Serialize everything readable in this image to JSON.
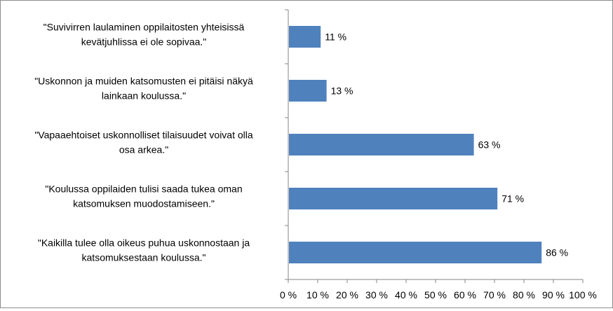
{
  "chart_data": {
    "type": "bar",
    "orientation": "horizontal",
    "categories": [
      [
        "\"Suvivirren laulaminen oppilaitosten yhteisissä",
        "kevätjuhlissa ei ole sopivaa.\""
      ],
      [
        "\"Uskonnon ja muiden katsomusten ei pitäisi näkyä",
        "lainkaan koulussa.\""
      ],
      [
        "\"Vapaaehtoiset uskonnolliset tilaisuudet voivat olla",
        "osa arkea.\""
      ],
      [
        "\"Koulussa oppilaiden tulisi saada tukea oman",
        "katsomuksen muodostamiseen.\""
      ],
      [
        "\"Kaikilla tulee olla oikeus puhua uskonnostaan ja",
        "katsomuksestaan koulussa.\""
      ]
    ],
    "values": [
      11,
      13,
      63,
      71,
      86
    ],
    "data_labels": [
      "11 %",
      "13 %",
      "63 %",
      "71 %",
      "86 %"
    ],
    "xlim": [
      0,
      100
    ],
    "x_ticks": [
      0,
      10,
      20,
      30,
      40,
      50,
      60,
      70,
      80,
      90,
      100
    ],
    "x_tick_labels": [
      "0 %",
      "10 %",
      "20 %",
      "30 %",
      "40 %",
      "50 %",
      "60 %",
      "70 %",
      "80 %",
      "90 %",
      "100 %"
    ],
    "grid": false,
    "legend": "none",
    "bar_color": "#4f81bd",
    "axis_color": "#868686"
  }
}
